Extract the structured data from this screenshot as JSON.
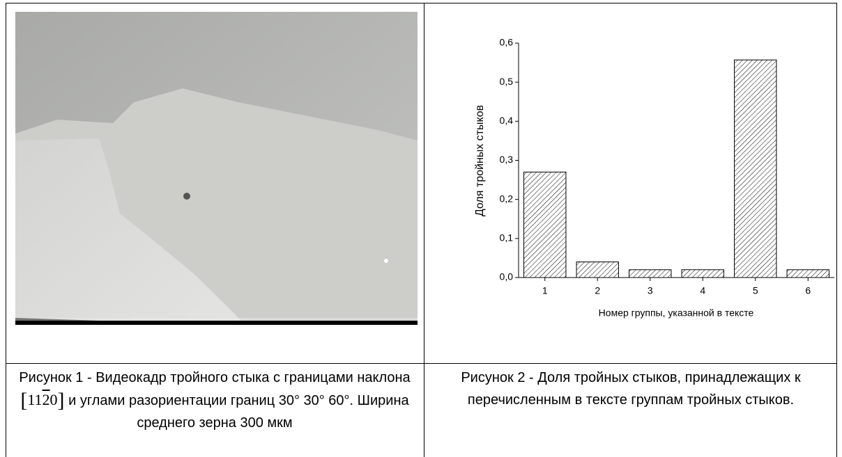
{
  "chart_data": {
    "type": "bar",
    "xlabel": "Номер группы, указанной в тексте",
    "ylabel": "Доля тройных стыков",
    "categories": [
      "1",
      "2",
      "3",
      "4",
      "5",
      "6"
    ],
    "values": [
      0.27,
      0.04,
      0.02,
      0.02,
      0.557,
      0.02
    ],
    "ylim": [
      0,
      0.6
    ],
    "yticks": [
      {
        "value": 0,
        "label": "0,0"
      },
      {
        "value": 0.1,
        "label": "0,1"
      },
      {
        "value": 0.2,
        "label": "0,2"
      },
      {
        "value": 0.3,
        "label": "0,3"
      },
      {
        "value": 0.4,
        "label": "0,4"
      },
      {
        "value": 0.5,
        "label": "0,5"
      },
      {
        "value": 0.6,
        "label": "0,6"
      }
    ],
    "color": "#000000",
    "hatch": true
  },
  "captions": [
    {
      "before": "Рисунок 1 - Видеокадр тройного стыка с границами наклона",
      "index": [
        "11",
        "2",
        "0"
      ],
      "after": "и углами разориентации границ 30° 30° 60°. Ширина среднего зерна 300 мкм"
    },
    {
      "text": "Рисунок 2 - Доля тройных стыков, принадлежащих к перечисленным в тексте группам тройных стыков."
    }
  ]
}
